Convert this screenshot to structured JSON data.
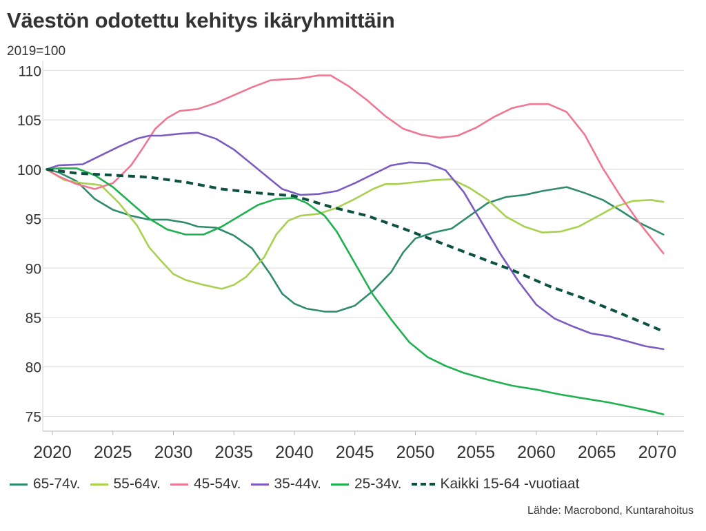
{
  "title": "Väestön odotettu kehitys ikäryhmittäin",
  "unit_label": "2019=100",
  "source": "Lähde: Macrobond, Kuntarahoitus",
  "chart_data": {
    "type": "line",
    "title": "Väestön odotettu kehitys ikäryhmittäin",
    "ylabel": "2019=100",
    "xlabel": "",
    "xlim": [
      2019.2,
      2072.2
    ],
    "ylim": [
      73.5,
      111
    ],
    "x_ticks": [
      2020,
      2025,
      2030,
      2035,
      2040,
      2045,
      2050,
      2055,
      2060,
      2065,
      2070
    ],
    "y_ticks": [
      75,
      80,
      85,
      90,
      95,
      100,
      105,
      110
    ],
    "grid": "horizontal",
    "legend_position": "bottom",
    "series": [
      {
        "name": "65-74v.",
        "color": "#2e8b6e",
        "style": "solid",
        "x": [
          2019.5,
          2020.5,
          2022,
          2023.5,
          2025,
          2026.5,
          2028,
          2029.5,
          2031,
          2032,
          2033.5,
          2035,
          2036.5,
          2038,
          2039,
          2040,
          2041,
          2042.5,
          2043.5,
          2045,
          2046.5,
          2048,
          2049,
          2050,
          2051.5,
          2053,
          2054.5,
          2056,
          2057.5,
          2059,
          2060.5,
          2062.5,
          2064,
          2065.5,
          2067,
          2068.5,
          2070.5
        ],
        "y": [
          100,
          99.7,
          98.8,
          97.0,
          95.9,
          95.3,
          94.9,
          94.9,
          94.6,
          94.2,
          94.1,
          93.3,
          92.0,
          89.4,
          87.4,
          86.4,
          85.9,
          85.6,
          85.6,
          86.2,
          87.7,
          89.6,
          91.6,
          93.0,
          93.6,
          94.0,
          95.3,
          96.6,
          97.2,
          97.4,
          97.8,
          98.2,
          97.6,
          96.9,
          95.8,
          94.6,
          93.4
        ]
      },
      {
        "name": "55-64v.",
        "color": "#a8d14f",
        "style": "solid",
        "x": [
          2019.5,
          2021,
          2022.5,
          2024,
          2025.5,
          2027,
          2028,
          2029,
          2030,
          2031,
          2032.5,
          2034,
          2035,
          2036,
          2037.5,
          2038.5,
          2039.5,
          2040.5,
          2042,
          2043.5,
          2045,
          2046.5,
          2047.5,
          2048.5,
          2050,
          2051.5,
          2053,
          2054.5,
          2056,
          2057.5,
          2059,
          2060.5,
          2062,
          2063.5,
          2065,
          2066.5,
          2068,
          2069.5,
          2070.5
        ],
        "y": [
          100,
          98.9,
          98.6,
          98.4,
          96.6,
          94.3,
          92.1,
          90.7,
          89.4,
          88.8,
          88.3,
          87.9,
          88.3,
          89.1,
          91.1,
          93.4,
          94.8,
          95.3,
          95.5,
          96.1,
          97.0,
          98.0,
          98.5,
          98.5,
          98.7,
          98.9,
          99.0,
          98.1,
          96.9,
          95.2,
          94.2,
          93.6,
          93.7,
          94.2,
          95.2,
          96.2,
          96.8,
          96.9,
          96.7
        ]
      },
      {
        "name": "45-54v.",
        "color": "#f07791",
        "style": "solid",
        "x": [
          2019.5,
          2020.5,
          2022,
          2023.5,
          2025,
          2026.5,
          2027.5,
          2028.5,
          2029.5,
          2030.5,
          2032,
          2033.5,
          2035,
          2036.5,
          2038,
          2039,
          2040.5,
          2042,
          2043,
          2044.5,
          2046,
          2047.5,
          2049,
          2050.5,
          2052,
          2053.5,
          2055,
          2056.5,
          2058,
          2059.5,
          2061,
          2062.5,
          2064,
          2065.5,
          2067,
          2068.5,
          2070.5
        ],
        "y": [
          100,
          99.3,
          98.5,
          98.0,
          98.6,
          100.4,
          102.2,
          104.1,
          105.2,
          105.9,
          106.1,
          106.7,
          107.5,
          108.3,
          109.0,
          109.1,
          109.2,
          109.5,
          109.5,
          108.4,
          107.0,
          105.4,
          104.1,
          103.5,
          103.2,
          103.4,
          104.2,
          105.3,
          106.2,
          106.6,
          106.6,
          105.8,
          103.5,
          100.1,
          97.2,
          94.6,
          91.5
        ]
      },
      {
        "name": "35-44v.",
        "color": "#7b5bc0",
        "style": "solid",
        "x": [
          2019.5,
          2020.5,
          2022.5,
          2024,
          2025.5,
          2027,
          2028,
          2029,
          2030.5,
          2032,
          2033.5,
          2035,
          2036.5,
          2038,
          2039,
          2040.5,
          2042,
          2043.5,
          2045,
          2046.5,
          2048,
          2049.5,
          2051,
          2052.5,
          2054,
          2055.5,
          2057,
          2058.5,
          2060,
          2061.5,
          2063,
          2064.5,
          2066,
          2067.5,
          2069,
          2070.5
        ],
        "y": [
          100,
          100.4,
          100.5,
          101.4,
          102.3,
          103.1,
          103.4,
          103.4,
          103.6,
          103.7,
          103.1,
          102.0,
          100.5,
          99.0,
          98.0,
          97.4,
          97.5,
          97.8,
          98.6,
          99.5,
          100.4,
          100.7,
          100.6,
          99.9,
          97.7,
          94.6,
          91.5,
          88.7,
          86.3,
          84.9,
          84.1,
          83.4,
          83.1,
          82.6,
          82.1,
          81.8
        ]
      },
      {
        "name": "25-34v.",
        "color": "#1fb04f",
        "style": "solid",
        "x": [
          2019.5,
          2020.5,
          2022,
          2023.5,
          2025,
          2026.5,
          2028,
          2029.5,
          2031,
          2032.5,
          2034,
          2035.5,
          2037,
          2038.5,
          2040,
          2041,
          2042.5,
          2043.5,
          2045,
          2046.5,
          2048,
          2049.5,
          2051,
          2052.5,
          2054,
          2056,
          2058,
          2060,
          2062,
          2064,
          2066,
          2068,
          2069.5,
          2070.5
        ],
        "y": [
          100,
          100.1,
          100.1,
          99.4,
          98.2,
          96.6,
          95.0,
          93.9,
          93.4,
          93.4,
          94.2,
          95.3,
          96.4,
          97.0,
          97.1,
          96.6,
          95.3,
          93.7,
          90.5,
          87.3,
          84.8,
          82.5,
          81.0,
          80.1,
          79.4,
          78.7,
          78.1,
          77.7,
          77.2,
          76.8,
          76.4,
          75.9,
          75.5,
          75.2
        ]
      },
      {
        "name": "Kaikki 15-64 -vuotiaat",
        "color": "#0d5240",
        "style": "dashed",
        "x": [
          2019.5,
          2022,
          2025,
          2028,
          2031,
          2034,
          2037,
          2040,
          2043,
          2046,
          2049,
          2052,
          2055,
          2058,
          2061,
          2064,
          2067,
          2070.5
        ],
        "y": [
          100,
          99.6,
          99.4,
          99.2,
          98.7,
          98.0,
          97.6,
          97.3,
          96.2,
          95.3,
          94.0,
          92.6,
          91.2,
          89.8,
          88.2,
          86.9,
          85.4,
          83.6
        ]
      }
    ]
  }
}
